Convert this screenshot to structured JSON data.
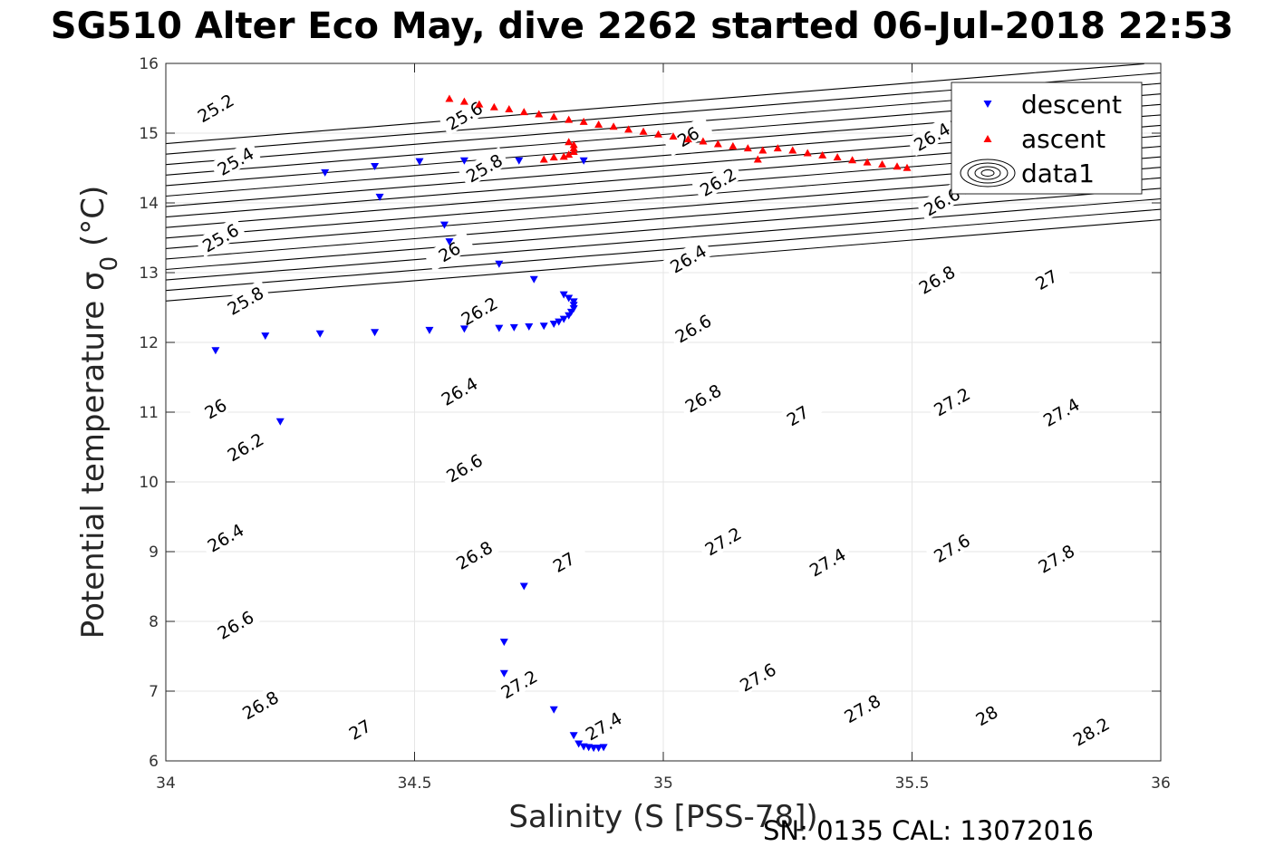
{
  "title": "SG510 Alter Eco May, dive 2262 started 06-Jul-2018 22:53",
  "footer": "SN: 0135  CAL: 13072016",
  "chart_data": {
    "type": "scatter",
    "title": "SG510 Alter Eco May, dive 2262 started 06-Jul-2018 22:53",
    "xlabel": "Salinity (S [PSS-78])",
    "ylabel": "Potential temperature σ",
    "ylabel_sub": "0",
    "ylabel_unit": " (°C)",
    "xlim": [
      34,
      36
    ],
    "ylim": [
      6,
      16
    ],
    "xticks": [
      34,
      34.5,
      35,
      35.5,
      36
    ],
    "yticks": [
      6,
      7,
      8,
      9,
      10,
      11,
      12,
      13,
      14,
      15,
      16
    ],
    "xtick_labels": [
      "34",
      "34.5",
      "35",
      "35.5",
      "36"
    ],
    "ytick_labels": [
      "6",
      "7",
      "8",
      "9",
      "10",
      "11",
      "12",
      "13",
      "14",
      "15",
      "16"
    ],
    "grid": true,
    "legend_position": "top-right",
    "colors": {
      "descent": "#0000ff",
      "ascent": "#ff0000",
      "contour": "#000000",
      "grid": "#e6e6e6"
    },
    "contour_levels": [
      25.2,
      25.4,
      25.6,
      25.8,
      26,
      26.2,
      26.4,
      26.6,
      26.8,
      27,
      27.2,
      27.4,
      27.6,
      27.8,
      28,
      28.2
    ],
    "contour_labels": [
      {
        "text": "25.2",
        "s": 34.1,
        "t": 15.36
      },
      {
        "text": "25.4",
        "s": 34.14,
        "t": 14.6
      },
      {
        "text": "25.6",
        "s": 34.11,
        "t": 13.5
      },
      {
        "text": "25.8",
        "s": 34.16,
        "t": 12.6
      },
      {
        "text": "26",
        "s": 34.1,
        "t": 11.05
      },
      {
        "text": "26.2",
        "s": 34.16,
        "t": 10.5
      },
      {
        "text": "26.4",
        "s": 34.12,
        "t": 9.2
      },
      {
        "text": "26.6",
        "s": 34.14,
        "t": 7.95
      },
      {
        "text": "26.8",
        "s": 34.19,
        "t": 6.8
      },
      {
        "text": "27",
        "s": 34.39,
        "t": 6.45
      },
      {
        "text": "25.6",
        "s": 34.6,
        "t": 15.25
      },
      {
        "text": "25.8",
        "s": 34.64,
        "t": 14.5
      },
      {
        "text": "26",
        "s": 34.57,
        "t": 13.3
      },
      {
        "text": "26.2",
        "s": 34.63,
        "t": 12.45
      },
      {
        "text": "26.4",
        "s": 34.59,
        "t": 11.3
      },
      {
        "text": "26.6",
        "s": 34.6,
        "t": 10.2
      },
      {
        "text": "26.8",
        "s": 34.62,
        "t": 8.95
      },
      {
        "text": "27",
        "s": 34.8,
        "t": 8.85
      },
      {
        "text": "27.2",
        "s": 34.71,
        "t": 7.1
      },
      {
        "text": "27.4",
        "s": 34.88,
        "t": 6.5
      },
      {
        "text": "26",
        "s": 35.05,
        "t": 14.95
      },
      {
        "text": "26.2",
        "s": 35.11,
        "t": 14.3
      },
      {
        "text": "26.4",
        "s": 35.05,
        "t": 13.2
      },
      {
        "text": "26.6",
        "s": 35.06,
        "t": 12.2
      },
      {
        "text": "26.8",
        "s": 35.08,
        "t": 11.2
      },
      {
        "text": "27",
        "s": 35.27,
        "t": 10.95
      },
      {
        "text": "27.2",
        "s": 35.12,
        "t": 9.15
      },
      {
        "text": "27.4",
        "s": 35.33,
        "t": 8.85
      },
      {
        "text": "27.6",
        "s": 35.19,
        "t": 7.2
      },
      {
        "text": "27.8",
        "s": 35.4,
        "t": 6.75
      },
      {
        "text": "26.4",
        "s": 35.54,
        "t": 14.95
      },
      {
        "text": "26.6",
        "s": 35.56,
        "t": 14.02
      },
      {
        "text": "26.8",
        "s": 35.55,
        "t": 12.9
      },
      {
        "text": "27",
        "s": 35.77,
        "t": 12.9
      },
      {
        "text": "27.2",
        "s": 35.58,
        "t": 11.15
      },
      {
        "text": "27.4",
        "s": 35.8,
        "t": 11.0
      },
      {
        "text": "27.6",
        "s": 35.58,
        "t": 9.05
      },
      {
        "text": "27.8",
        "s": 35.79,
        "t": 8.9
      },
      {
        "text": "28",
        "s": 35.65,
        "t": 6.65
      },
      {
        "text": "28.2",
        "s": 35.86,
        "t": 6.42
      }
    ],
    "series": [
      {
        "name": "descent",
        "marker": "triangle-down",
        "points": [
          [
            34.1,
            11.88
          ],
          [
            34.2,
            12.09
          ],
          [
            34.31,
            12.12
          ],
          [
            34.42,
            12.14
          ],
          [
            34.53,
            12.17
          ],
          [
            34.6,
            12.19
          ],
          [
            34.67,
            12.2
          ],
          [
            34.7,
            12.21
          ],
          [
            34.73,
            12.22
          ],
          [
            34.76,
            12.23
          ],
          [
            34.78,
            12.26
          ],
          [
            34.79,
            12.29
          ],
          [
            34.8,
            12.33
          ],
          [
            34.81,
            12.38
          ],
          [
            34.815,
            12.43
          ],
          [
            34.82,
            12.48
          ],
          [
            34.82,
            12.53
          ],
          [
            34.82,
            12.58
          ],
          [
            34.81,
            12.63
          ],
          [
            34.8,
            12.68
          ],
          [
            34.74,
            12.9
          ],
          [
            34.67,
            13.12
          ],
          [
            34.57,
            13.44
          ],
          [
            34.56,
            13.68
          ],
          [
            34.32,
            14.43
          ],
          [
            34.42,
            14.52
          ],
          [
            34.43,
            14.08
          ],
          [
            34.51,
            14.59
          ],
          [
            34.6,
            14.6
          ],
          [
            34.71,
            14.6
          ],
          [
            34.84,
            14.6
          ],
          [
            34.23,
            10.86
          ],
          [
            34.72,
            8.5
          ],
          [
            34.68,
            7.7
          ],
          [
            34.68,
            7.25
          ],
          [
            34.78,
            6.73
          ],
          [
            34.82,
            6.36
          ],
          [
            34.83,
            6.24
          ],
          [
            34.84,
            6.2
          ],
          [
            34.85,
            6.19
          ],
          [
            34.86,
            6.18
          ],
          [
            34.87,
            6.18
          ],
          [
            34.88,
            6.19
          ]
        ]
      },
      {
        "name": "ascent",
        "marker": "triangle-up",
        "points": [
          [
            34.57,
            15.5
          ],
          [
            34.6,
            15.46
          ],
          [
            34.63,
            15.42
          ],
          [
            34.66,
            15.38
          ],
          [
            34.69,
            15.35
          ],
          [
            34.72,
            15.31
          ],
          [
            34.75,
            15.28
          ],
          [
            34.78,
            15.24
          ],
          [
            34.81,
            15.2
          ],
          [
            34.84,
            15.17
          ],
          [
            34.87,
            15.13
          ],
          [
            34.9,
            15.1
          ],
          [
            34.93,
            15.06
          ],
          [
            34.96,
            15.03
          ],
          [
            34.99,
            14.99
          ],
          [
            35.02,
            14.96
          ],
          [
            35.05,
            14.92
          ],
          [
            35.08,
            14.89
          ],
          [
            35.11,
            14.85
          ],
          [
            35.14,
            14.82
          ],
          [
            35.17,
            14.79
          ],
          [
            35.2,
            14.76
          ],
          [
            35.23,
            14.79
          ],
          [
            35.26,
            14.76
          ],
          [
            35.29,
            14.72
          ],
          [
            35.32,
            14.69
          ],
          [
            35.35,
            14.66
          ],
          [
            35.38,
            14.62
          ],
          [
            35.41,
            14.59
          ],
          [
            35.44,
            14.56
          ],
          [
            35.47,
            14.53
          ],
          [
            35.49,
            14.51
          ],
          [
            35.19,
            14.63
          ],
          [
            34.76,
            14.63
          ],
          [
            34.78,
            14.66
          ],
          [
            34.8,
            14.67
          ],
          [
            34.81,
            14.7
          ],
          [
            34.82,
            14.74
          ],
          [
            34.82,
            14.79
          ],
          [
            34.82,
            14.84
          ],
          [
            34.81,
            14.88
          ]
        ]
      },
      {
        "name": "data1",
        "marker": "contour"
      }
    ]
  }
}
